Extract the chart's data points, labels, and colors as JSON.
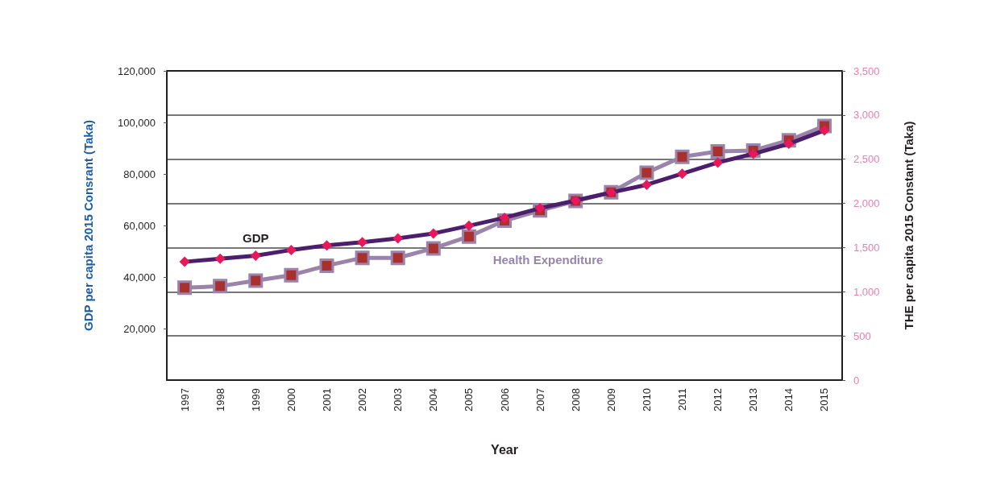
{
  "chart_data": {
    "type": "line",
    "xlabel": "Year",
    "ylabel": "GDP per capita 2015 Consrant (Taka)",
    "y2label": "THE per capita 2015 Constant (Taka)",
    "categories": [
      "1997",
      "1998",
      "1999",
      "2000",
      "2001",
      "2002",
      "2003",
      "2004",
      "2005",
      "2006",
      "2007",
      "2008",
      "2009",
      "2010",
      "2011",
      "2012",
      "2013",
      "2014",
      "2015"
    ],
    "series": [
      {
        "name": "GDP",
        "color": "#4b1f6b",
        "marker": "diamond",
        "values": [
          45900,
          47100,
          48300,
          50500,
          52300,
          53500,
          55000,
          56900,
          59900,
          63000,
          66700,
          69700,
          72800,
          75800,
          80100,
          84400,
          87800,
          91700,
          96900
        ]
      },
      {
        "name": "Health Expenditure",
        "color": "#9a84aa",
        "marker": "square",
        "axis": "y2",
        "values": [
          1045,
          1063,
          1125,
          1188,
          1295,
          1384,
          1384,
          1491,
          1625,
          1804,
          1920,
          2027,
          2125,
          2348,
          2527,
          2589,
          2598,
          2714,
          2875
        ]
      }
    ],
    "ylim": [
      0,
      120000
    ],
    "yticks": [
      {
        "value": 20000,
        "label": "20,000"
      },
      {
        "value": 40000,
        "label": "40,000"
      },
      {
        "value": 60000,
        "label": "60,000"
      },
      {
        "value": 80000,
        "label": "80,000"
      },
      {
        "value": 100000,
        "label": "100,000"
      },
      {
        "value": 120000,
        "label": "120,000"
      }
    ],
    "y2lim": [
      0,
      3500
    ],
    "y2ticks": [
      0,
      500,
      {
        "value": 1000,
        "label": "1,000"
      },
      {
        "value": 1500,
        "label": "1,500"
      },
      {
        "value": 2000,
        "label": "2,000"
      },
      {
        "value": 2500,
        "label": "2,500"
      },
      {
        "value": 3000,
        "label": "3,000"
      },
      {
        "value": 3500,
        "label": "3,500"
      }
    ],
    "grid": true,
    "line_style": "solid"
  }
}
